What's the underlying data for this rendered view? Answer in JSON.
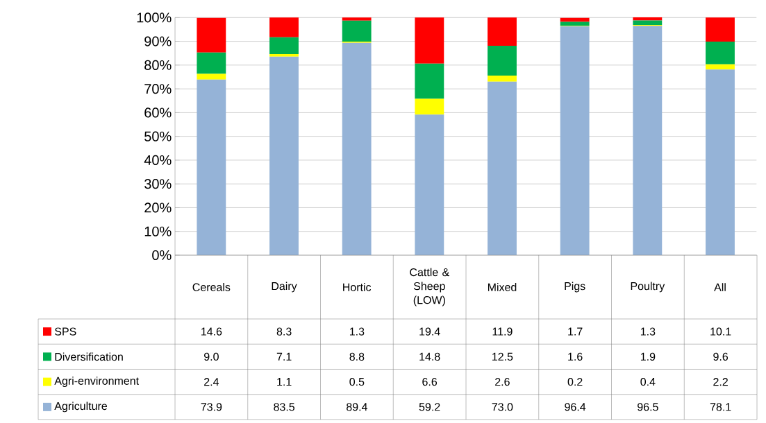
{
  "chart_data": {
    "type": "bar",
    "stacked": true,
    "categories": [
      "Cereals",
      "Dairy",
      "Hortic",
      "Cattle & Sheep (LOW)",
      "Mixed",
      "Pigs",
      "Poultry",
      "All"
    ],
    "series": [
      {
        "name": "Agriculture",
        "color": "#95b3d7",
        "values": [
          73.9,
          83.5,
          89.4,
          59.2,
          73.0,
          96.4,
          96.5,
          78.1
        ],
        "value_labels": [
          "73.9",
          "83.5",
          "89.4",
          "59.2",
          "73.0",
          "96.4",
          "96.5",
          "78.1"
        ]
      },
      {
        "name": "Agri-environment",
        "color": "#ffff00",
        "values": [
          2.4,
          1.1,
          0.5,
          6.6,
          2.6,
          0.2,
          0.4,
          2.2
        ],
        "value_labels": [
          "2.4",
          "1.1",
          "0.5",
          "6.6",
          "2.6",
          "0.2",
          "0.4",
          "2.2"
        ]
      },
      {
        "name": "Diversification",
        "color": "#00b050",
        "values": [
          9.0,
          7.1,
          8.8,
          14.8,
          12.5,
          1.6,
          1.9,
          9.6
        ],
        "value_labels": [
          "9.0",
          "7.1",
          "8.8",
          "14.8",
          "12.5",
          "1.6",
          "1.9",
          "9.6"
        ]
      },
      {
        "name": "SPS",
        "color": "#ff0000",
        "values": [
          14.6,
          8.3,
          1.3,
          19.4,
          11.9,
          1.7,
          1.3,
          10.1
        ],
        "value_labels": [
          "14.6",
          "8.3",
          "1.3",
          "19.4",
          "11.9",
          "1.7",
          "1.3",
          "10.1"
        ]
      }
    ],
    "ylim": [
      0,
      100
    ],
    "yticks": [
      {
        "value": 0,
        "label": "0%"
      },
      {
        "value": 10,
        "label": "10%"
      },
      {
        "value": 20,
        "label": "20%"
      },
      {
        "value": 30,
        "label": "30%"
      },
      {
        "value": 40,
        "label": "40%"
      },
      {
        "value": 50,
        "label": "50%"
      },
      {
        "value": 60,
        "label": "60%"
      },
      {
        "value": 70,
        "label": "70%"
      },
      {
        "value": 80,
        "label": "80%"
      },
      {
        "value": 90,
        "label": "90%"
      },
      {
        "value": 100,
        "label": "100%"
      }
    ],
    "grid": "y",
    "legend": "bottom"
  }
}
